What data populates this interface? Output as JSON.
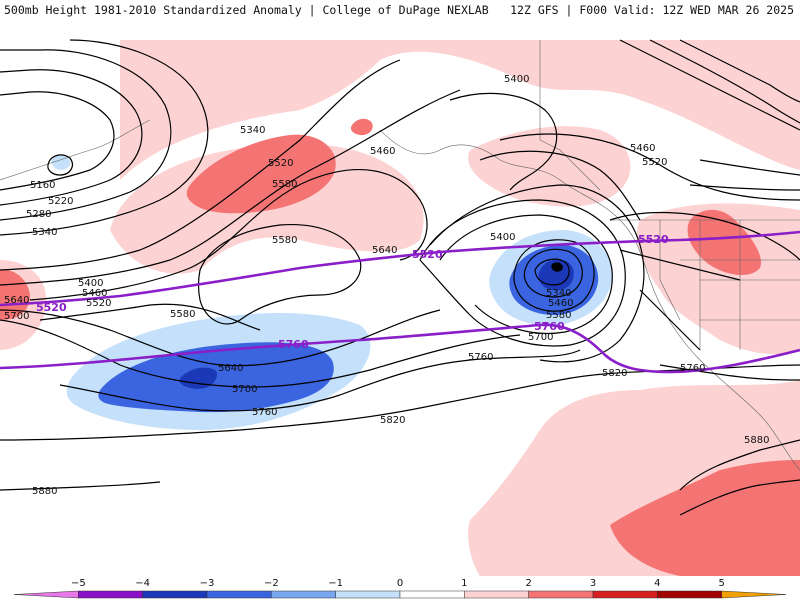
{
  "header": {
    "left": "500mb Height 1981-2010 Standardized Anomaly | College of DuPage NEXLAB",
    "right": "12Z GFS | F000 Valid: 12Z WED MAR 26 2025"
  },
  "colors": {
    "anom_neg": [
      "#c4e0fa",
      "#5a8cee",
      "#2a50d0",
      "#1a2ea0",
      "#7a0cb0"
    ],
    "anom_pos": [
      "#fcd2d2",
      "#f47474",
      "#d62020",
      "#a00000",
      "#f0a000"
    ],
    "contour": "#000000",
    "highlight_contour": "#8a1ec8",
    "borders": "#555555"
  },
  "map": {
    "contour_labels": [
      "5340",
      "5400",
      "5460",
      "5520",
      "5580",
      "5640",
      "5700",
      "5760",
      "5820",
      "5880",
      "5160",
      "5220",
      "5280"
    ],
    "labels": [
      {
        "text": "5400"
      },
      {
        "text": "5340"
      },
      {
        "text": "5460"
      },
      {
        "text": "5520"
      },
      {
        "text": "5580"
      },
      {
        "text": "5160"
      },
      {
        "text": "5220"
      },
      {
        "text": "5280"
      },
      {
        "text": "5340"
      },
      {
        "text": "5400"
      },
      {
        "text": "5460"
      },
      {
        "text": "5520"
      },
      {
        "text": "5640"
      },
      {
        "text": "5700"
      },
      {
        "text": "5580"
      },
      {
        "text": "5640"
      },
      {
        "text": "5700"
      },
      {
        "text": "5760"
      },
      {
        "text": "5580"
      },
      {
        "text": "5640"
      },
      {
        "text": "5400"
      },
      {
        "text": "5340"
      },
      {
        "text": "5460"
      },
      {
        "text": "5580"
      },
      {
        "text": "5700"
      },
      {
        "text": "5760"
      },
      {
        "text": "5820"
      },
      {
        "text": "5820"
      },
      {
        "text": "5880"
      },
      {
        "text": "5880"
      },
      {
        "text": "5460"
      },
      {
        "text": "5520"
      },
      {
        "text": "5760"
      }
    ],
    "purple_labels": [
      {
        "text": "5520"
      },
      {
        "text": "5520"
      },
      {
        "text": "5520"
      },
      {
        "text": "5760"
      },
      {
        "text": "5760"
      }
    ]
  },
  "colorbar": {
    "ticks": [
      "−5",
      "−4",
      "−3",
      "−2",
      "−1",
      "0",
      "1",
      "2",
      "3",
      "4",
      "5"
    ],
    "segments": [
      "#e878e8",
      "#8a10c8",
      "#1a38b8",
      "#3a64e0",
      "#7aa6f0",
      "#c4e0fa",
      "#ffffff",
      "#fcd2d2",
      "#f47474",
      "#d62020",
      "#a00000",
      "#f0a000"
    ]
  }
}
